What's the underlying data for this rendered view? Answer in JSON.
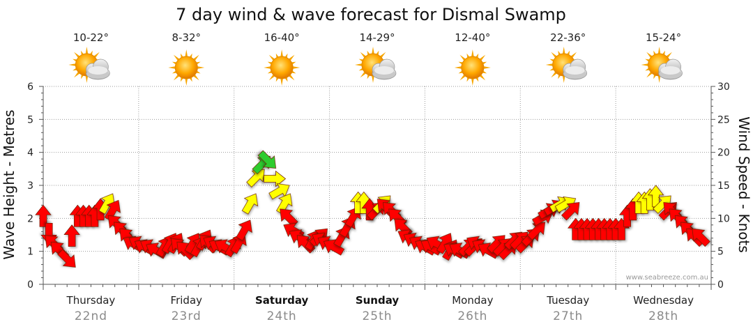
{
  "chart_data": {
    "type": "line",
    "title": "7 day wind & wave forecast for Dismal Swamp",
    "ylabel_left": "Wave Height - Metres",
    "ylabel_right": "Wind Speed - Knots",
    "ylim_left": [
      0,
      6
    ],
    "ylim_right": [
      0,
      30
    ],
    "yticks_left": [
      "0",
      "1",
      "2",
      "3",
      "4",
      "5",
      "6"
    ],
    "yticks_right": [
      "0",
      "5",
      "10",
      "15",
      "20",
      "25",
      "30"
    ],
    "watermark": "www.seabreeze.com.au",
    "days": [
      {
        "name": "Thursday",
        "date": "22nd",
        "temp": "10-22°",
        "icon": "partly-cloudy-icon",
        "bold": false
      },
      {
        "name": "Friday",
        "date": "23rd",
        "temp": "8-32°",
        "icon": "sun-icon",
        "bold": false
      },
      {
        "name": "Saturday",
        "date": "24th",
        "temp": "16-40°",
        "icon": "sun-icon",
        "bold": true
      },
      {
        "name": "Sunday",
        "date": "25th",
        "temp": "14-29°",
        "icon": "partly-cloudy-icon",
        "bold": true
      },
      {
        "name": "Monday",
        "date": "26th",
        "temp": "12-40°",
        "icon": "sun-icon",
        "bold": false
      },
      {
        "name": "Tuesday",
        "date": "27th",
        "temp": "22-36°",
        "icon": "partly-cloudy-icon",
        "bold": false
      },
      {
        "name": "Wednesday",
        "date": "28th",
        "temp": "15-24°",
        "icon": "partly-cloudy-icon",
        "bold": false
      }
    ],
    "wind_legend": {
      "green": "#2ecc2e",
      "yellow": "#ffff00",
      "red": "#ff0000"
    },
    "series": [
      {
        "name": "Wind Speed (knots)",
        "x_days": [
          0.0,
          0.06,
          0.12,
          0.18,
          0.24,
          0.3,
          0.36,
          0.42,
          0.48,
          0.54,
          0.6,
          0.66,
          0.72,
          0.78,
          0.84,
          0.9,
          0.96,
          1.02,
          1.08,
          1.14,
          1.2,
          1.26,
          1.32,
          1.38,
          1.44,
          1.5,
          1.56,
          1.62,
          1.68,
          1.74,
          1.8,
          1.86,
          1.92,
          1.98,
          2.04,
          2.1,
          2.16,
          2.22,
          2.28,
          2.34,
          2.4,
          2.46,
          2.52,
          2.58,
          2.64,
          2.7,
          2.76,
          2.82,
          2.88,
          2.94,
          3.0,
          3.06,
          3.12,
          3.18,
          3.24,
          3.3,
          3.36,
          3.42,
          3.48,
          3.54,
          3.6,
          3.66,
          3.72,
          3.78,
          3.84,
          3.9,
          3.96,
          4.02,
          4.08,
          4.14,
          4.2,
          4.26,
          4.32,
          4.38,
          4.44,
          4.5,
          4.56,
          4.62,
          4.68,
          4.74,
          4.8,
          4.86,
          4.92,
          4.98,
          5.04,
          5.1,
          5.16,
          5.22,
          5.28,
          5.34,
          5.4,
          5.46,
          5.52,
          5.58,
          5.64,
          5.7,
          5.76,
          5.82,
          5.88,
          5.94,
          6.0,
          6.06,
          6.12,
          6.18,
          6.24,
          6.3,
          6.36,
          6.42,
          6.48,
          6.54,
          6.6,
          6.66,
          6.72,
          6.78,
          6.84,
          6.9
        ],
        "values": [
          10,
          8,
          6,
          5,
          4,
          7,
          10,
          10,
          10,
          10,
          11,
          12,
          11,
          9,
          8,
          7,
          6,
          6,
          5.5,
          5.5,
          5,
          5.5,
          6,
          6,
          5.5,
          5,
          6,
          5.5,
          6.5,
          6,
          6,
          5.5,
          5.5,
          5.5,
          6,
          8,
          12,
          16,
          18,
          19,
          16,
          14,
          12,
          10,
          8,
          7,
          6,
          6.5,
          7,
          6.5,
          6,
          5.5,
          7,
          8.5,
          10,
          12,
          12,
          11,
          11,
          12,
          11.5,
          11,
          10,
          8.5,
          7,
          6.5,
          6,
          5.5,
          5.5,
          6,
          6,
          5,
          5,
          5,
          5.5,
          5.5,
          6,
          5.5,
          5,
          6,
          5.5,
          5,
          6.5,
          6.5,
          6,
          7,
          8,
          10,
          11,
          11.5,
          12,
          12,
          11,
          8,
          8,
          8,
          8,
          8,
          8,
          8,
          8,
          8,
          10,
          11,
          12,
          12,
          12.5,
          13,
          12,
          11,
          11,
          10,
          9,
          8,
          7,
          7
        ],
        "directions_deg": [
          0,
          180,
          315,
          315,
          135,
          0,
          0,
          0,
          0,
          0,
          0,
          30,
          30,
          315,
          315,
          315,
          300,
          300,
          300,
          300,
          300,
          30,
          30,
          30,
          315,
          315,
          30,
          30,
          30,
          315,
          300,
          300,
          300,
          30,
          30,
          30,
          30,
          45,
          45,
          135,
          90,
          60,
          30,
          315,
          300,
          300,
          315,
          30,
          45,
          300,
          300,
          300,
          30,
          30,
          30,
          0,
          0,
          0,
          45,
          45,
          315,
          315,
          315,
          315,
          300,
          300,
          300,
          300,
          300,
          300,
          30,
          30,
          300,
          300,
          45,
          45,
          300,
          300,
          300,
          45,
          45,
          45,
          45,
          45,
          45,
          45,
          45,
          60,
          60,
          60,
          60,
          60,
          45,
          0,
          0,
          0,
          0,
          0,
          0,
          0,
          0,
          0,
          0,
          0,
          0,
          0,
          0,
          0,
          45,
          45,
          315,
          315,
          315,
          315,
          315,
          315
        ]
      }
    ]
  }
}
